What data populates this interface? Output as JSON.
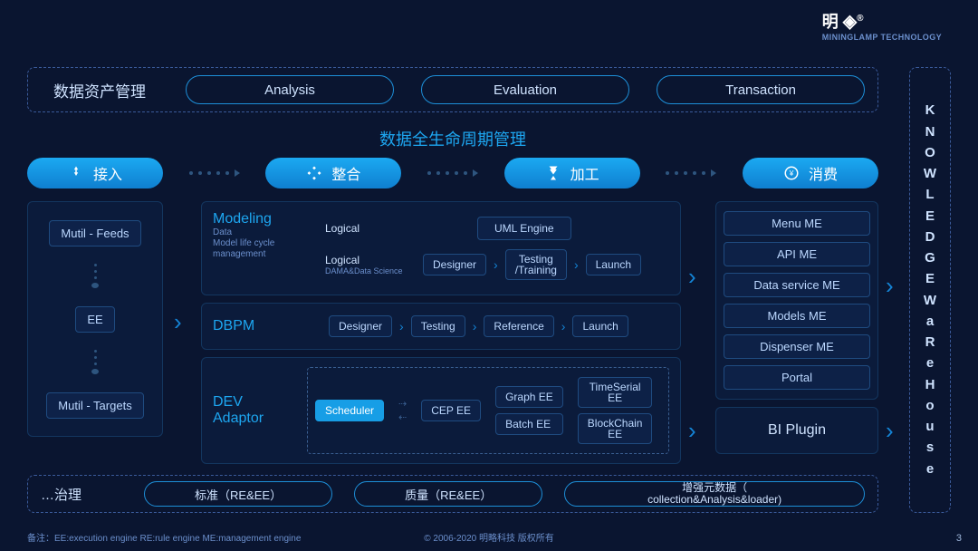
{
  "meta": {
    "bg_color": "#0a1530",
    "accent": "#1da6f0",
    "border_dashed": "#3a5a9a",
    "border_solid": "#13365f",
    "text_light": "#cfe3ff",
    "text_dim": "#6b8fcc"
  },
  "logo": {
    "main": "明",
    "sub": "MININGLAMP TECHNOLOGY"
  },
  "top": {
    "label": "数据资产管理",
    "items": [
      "Analysis",
      "Evaluation",
      "Transaction"
    ]
  },
  "center_title": "数据全生命周期管理",
  "lifecycle": {
    "pill_bg": "#1ba9f2",
    "items": [
      {
        "label": "接入"
      },
      {
        "label": "整合"
      },
      {
        "label": "加工"
      },
      {
        "label": "消费"
      }
    ]
  },
  "left": {
    "items": [
      "Mutil - Feeds",
      "EE",
      "Mutil - Targets"
    ]
  },
  "mid": {
    "modeling": {
      "title": "Modeling",
      "sub1": "Data",
      "sub2": "Model life cycle",
      "sub3": "management",
      "row1_label": "Logical",
      "row1_box": "UML Engine",
      "row2_label": "Logical",
      "row2_sub": "DAMA&Data Science",
      "row2_steps": [
        "Designer",
        "Testing\n/Training",
        "Launch"
      ]
    },
    "dbpm": {
      "title": "DBPM",
      "steps": [
        "Designer",
        "Testing",
        "Reference",
        "Launch"
      ]
    },
    "dev": {
      "title1": "DEV",
      "title2": "Adaptor",
      "scheduler": "Scheduler",
      "cep": "CEP EE",
      "col1": [
        "Graph EE",
        "Batch EE"
      ],
      "col2": [
        "TimeSerial\nEE",
        "BlockChain\nEE"
      ]
    }
  },
  "right": {
    "list": [
      "Menu ME",
      "API ME",
      "Data service ME",
      "Models ME",
      "Dispenser  ME",
      "Portal"
    ],
    "bi": "BI Plugin"
  },
  "bottom": {
    "label": "…治理",
    "items": [
      "标准（RE&EE）",
      "质量（RE&EE）",
      "增强元数据（\ncollection&Analysis&loader)"
    ]
  },
  "kw": "KNOWLEDGEWaReHouse",
  "footer": {
    "note": "备注：EE:execution engine    RE:rule engine    ME:management engine",
    "copyright": "© 2006-2020 明略科技 版权所有",
    "page": "3"
  }
}
